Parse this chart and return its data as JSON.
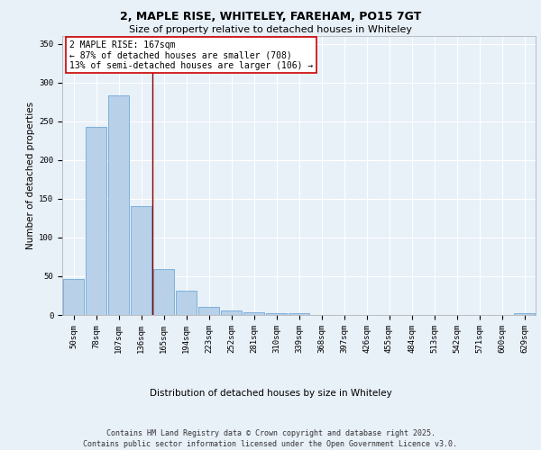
{
  "title_line1": "2, MAPLE RISE, WHITELEY, FAREHAM, PO15 7GT",
  "title_line2": "Size of property relative to detached houses in Whiteley",
  "xlabel": "Distribution of detached houses by size in Whiteley",
  "ylabel": "Number of detached properties",
  "categories": [
    "50sqm",
    "78sqm",
    "107sqm",
    "136sqm",
    "165sqm",
    "194sqm",
    "223sqm",
    "252sqm",
    "281sqm",
    "310sqm",
    "339sqm",
    "368sqm",
    "397sqm",
    "426sqm",
    "455sqm",
    "484sqm",
    "513sqm",
    "542sqm",
    "571sqm",
    "600sqm",
    "629sqm"
  ],
  "values": [
    47,
    243,
    283,
    140,
    59,
    31,
    10,
    6,
    4,
    2,
    2,
    0,
    0,
    0,
    0,
    0,
    0,
    0,
    0,
    0,
    2
  ],
  "bar_color": "#b8d0e8",
  "bar_edge_color": "#5a9fd4",
  "highlight_line_color": "#8b0000",
  "annotation_text": "2 MAPLE RISE: 167sqm\n← 87% of detached houses are smaller (708)\n13% of semi-detached houses are larger (106) →",
  "annotation_box_color": "#ffffff",
  "annotation_box_edge_color": "#cc0000",
  "ylim": [
    0,
    360
  ],
  "yticks": [
    0,
    50,
    100,
    150,
    200,
    250,
    300,
    350
  ],
  "background_color": "#e8f0f8",
  "plot_bg_color": "#e8f0f8",
  "grid_color": "#ffffff",
  "footer_text": "Contains HM Land Registry data © Crown copyright and database right 2025.\nContains public sector information licensed under the Open Government Licence v3.0.",
  "title_fontsize": 9,
  "subtitle_fontsize": 8,
  "axis_label_fontsize": 7.5,
  "tick_fontsize": 6.5,
  "annotation_fontsize": 7,
  "footer_fontsize": 6
}
